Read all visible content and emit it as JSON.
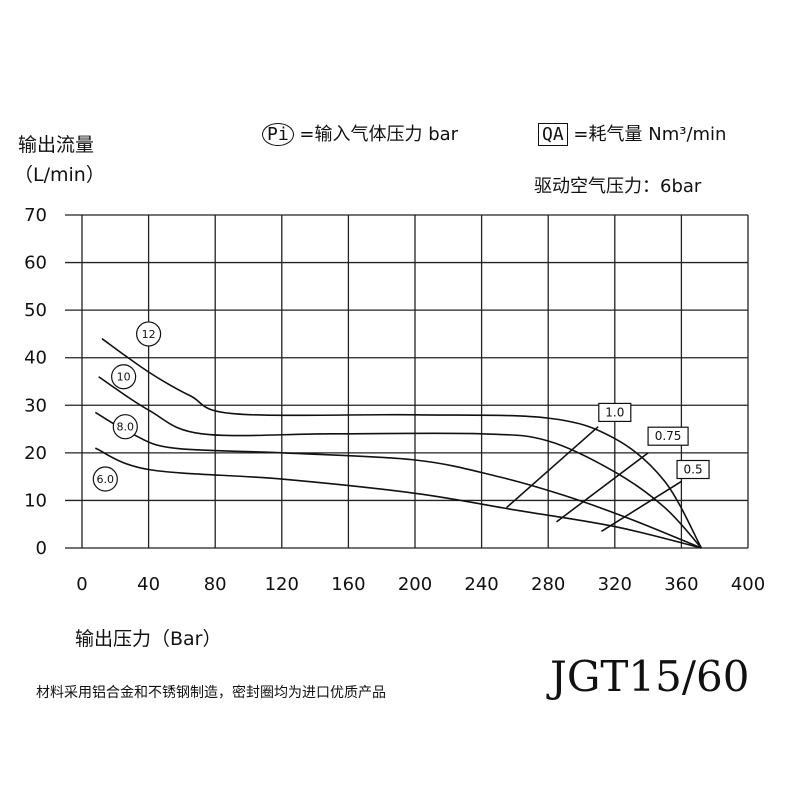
{
  "header": {
    "ylabel_line1": "输出流量",
    "ylabel_line2": "（L/min）",
    "legend_pi_symbol": "Pi",
    "legend_pi_text": "=输入气体压力 bar",
    "legend_qa_symbol": "QA",
    "legend_qa_text": "=耗气量 Nm³/min",
    "drive_pressure": "驱动空气压力：6bar"
  },
  "footer": {
    "xlabel": "输出压力（Bar）",
    "model": "JGT15/60",
    "note": "材料采用铝合金和不锈钢制造，密封圈均为进口优质产品"
  },
  "chart_data": {
    "type": "line",
    "xlabel": "输出压力（Bar）",
    "ylabel": "输出流量（L/min）",
    "xlim": [
      0,
      400
    ],
    "ylim": [
      0,
      70
    ],
    "x_ticks": [
      0,
      40,
      80,
      120,
      160,
      200,
      240,
      280,
      320,
      360,
      400
    ],
    "y_ticks": [
      0,
      10,
      20,
      30,
      40,
      50,
      60,
      70
    ],
    "grid": true,
    "series": [
      {
        "name": "12",
        "x": [
          12,
          40,
          65,
          92,
          200,
          280,
          320,
          350,
          372
        ],
        "y": [
          44,
          37,
          32,
          28.2,
          28,
          27.3,
          23,
          14,
          0
        ]
      },
      {
        "name": "10",
        "x": [
          10,
          40,
          72,
          150,
          240,
          280,
          320,
          350,
          372
        ],
        "y": [
          36,
          29,
          24,
          24,
          24,
          22.5,
          16,
          8.5,
          0
        ]
      },
      {
        "name": "8.0",
        "x": [
          8,
          30,
          55,
          120,
          200,
          250,
          290,
          330,
          372
        ],
        "y": [
          28.5,
          24,
          21,
          20,
          18.5,
          15,
          11,
          6,
          0
        ]
      },
      {
        "name": "6.0",
        "x": [
          8,
          40,
          120,
          200,
          260,
          320,
          372
        ],
        "y": [
          21,
          16.5,
          14.5,
          11.5,
          8,
          4.5,
          0
        ]
      },
      {
        "name": "1.0",
        "x": [
          255,
          310
        ],
        "y": [
          8.5,
          25.5
        ]
      },
      {
        "name": "0.75",
        "x": [
          285,
          340
        ],
        "y": [
          5.5,
          20
        ]
      },
      {
        "name": "0.5",
        "x": [
          312,
          360
        ],
        "y": [
          3.5,
          14
        ]
      }
    ],
    "curve_labels": [
      "12",
      "10",
      "8.0",
      "6.0"
    ],
    "qa_labels": [
      "1.0",
      "0.75",
      "0.5"
    ]
  }
}
